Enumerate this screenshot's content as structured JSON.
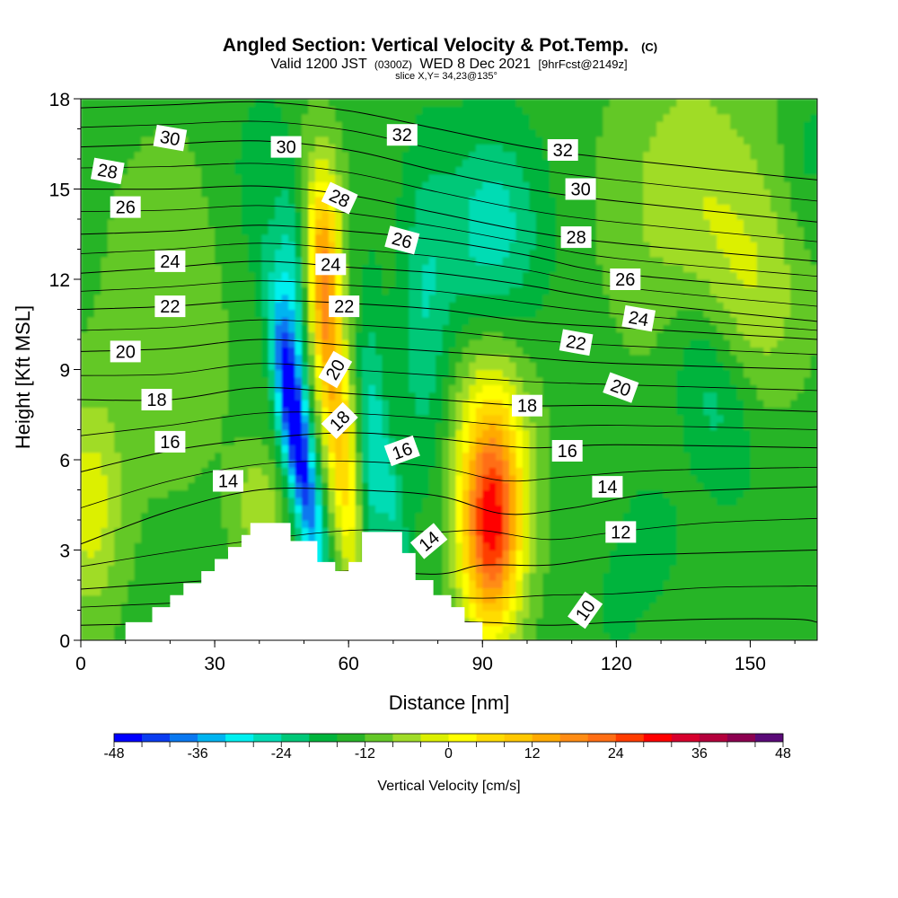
{
  "chart_data": {
    "type": "contour",
    "title": {
      "main": "Angled Section: Vertical Velocity & Pot.Temp.",
      "unit_tag": "(C)",
      "valid_prefix": "Valid 1200 JST",
      "utc_tag": "(0300Z)",
      "valid_date": "WED 8 Dec 2021",
      "forecast_tag": "[9hrFcst@2149z]",
      "slice": "slice X,Y= 34,23@135°"
    },
    "xlabel": "Distance [nm]",
    "ylabel": "Height [Kft MSL]",
    "xlim": [
      0,
      165
    ],
    "ylim": [
      0,
      18
    ],
    "x_ticks": [
      {
        "value": 0,
        "label": "0"
      },
      {
        "value": 30,
        "label": "30"
      },
      {
        "value": 60,
        "label": "60"
      },
      {
        "value": 90,
        "label": "90"
      },
      {
        "value": 120,
        "label": "120"
      },
      {
        "value": 150,
        "label": "150"
      }
    ],
    "y_ticks": [
      {
        "value": 0,
        "label": "0"
      },
      {
        "value": 3,
        "label": "3"
      },
      {
        "value": 6,
        "label": "6"
      },
      {
        "value": 9,
        "label": "9"
      },
      {
        "value": 12,
        "label": "12"
      },
      {
        "value": 15,
        "label": "15"
      },
      {
        "value": 18,
        "label": "18"
      }
    ],
    "colorbar": {
      "title": "Vertical Velocity [cm/s]",
      "min": -48,
      "max": 48,
      "step": 6,
      "colors": [
        "#0000ff",
        "#0a3cf0",
        "#0a78f0",
        "#00b4f0",
        "#00f0f0",
        "#00dcb4",
        "#00c878",
        "#00b43c",
        "#28b428",
        "#64c828",
        "#a0dc28",
        "#dcf000",
        "#ffff00",
        "#ffdc00",
        "#ffc800",
        "#ffaa00",
        "#ff8c14",
        "#ff6e14",
        "#ff3c00",
        "#ff0000",
        "#d7002d",
        "#b4003c",
        "#8c0050",
        "#5a0a78"
      ],
      "tick_labels": [
        {
          "value": -48,
          "label": "-48"
        },
        {
          "value": -36,
          "label": "-36"
        },
        {
          "value": -24,
          "label": "-24"
        },
        {
          "value": -12,
          "label": "-12"
        },
        {
          "value": 0,
          "label": "0"
        },
        {
          "value": 12,
          "label": "12"
        },
        {
          "value": 24,
          "label": "24"
        },
        {
          "value": 36,
          "label": "36"
        },
        {
          "value": 48,
          "label": "48"
        }
      ]
    },
    "terrain_profile": [
      [
        10,
        0
      ],
      [
        10,
        0.6
      ],
      [
        16,
        0.6
      ],
      [
        16,
        1.1
      ],
      [
        20,
        1.1
      ],
      [
        20,
        1.5
      ],
      [
        23,
        1.5
      ],
      [
        23,
        1.9
      ],
      [
        27,
        1.9
      ],
      [
        27,
        2.3
      ],
      [
        30,
        2.3
      ],
      [
        30,
        2.7
      ],
      [
        33,
        2.7
      ],
      [
        33,
        3.1
      ],
      [
        36,
        3.1
      ],
      [
        36,
        3.5
      ],
      [
        38,
        3.5
      ],
      [
        38,
        3.9
      ],
      [
        47,
        3.9
      ],
      [
        47,
        3.3
      ],
      [
        53,
        3.3
      ],
      [
        53,
        2.6
      ],
      [
        57,
        2.6
      ],
      [
        57,
        2.3
      ],
      [
        60,
        2.3
      ],
      [
        60,
        2.6
      ],
      [
        63,
        2.6
      ],
      [
        63,
        3.6
      ],
      [
        72,
        3.6
      ],
      [
        72,
        2.9
      ],
      [
        75,
        2.9
      ],
      [
        75,
        2.0
      ],
      [
        79,
        2.0
      ],
      [
        79,
        1.5
      ],
      [
        83,
        1.5
      ],
      [
        83,
        1.1
      ],
      [
        86,
        1.1
      ],
      [
        86,
        0.6
      ],
      [
        90,
        0.6
      ],
      [
        90,
        0
      ]
    ],
    "velocity_features": [
      {
        "x": 2,
        "z": 4.5,
        "sx": 5,
        "sz": 2.5,
        "value": 18
      },
      {
        "x": 49,
        "z": 6.3,
        "sx": 2.2,
        "sz": 3.2,
        "value": -46,
        "shear": -0.35
      },
      {
        "x": 47,
        "z": 10.2,
        "sx": 2.6,
        "sz": 3.2,
        "value": -22
      },
      {
        "x": 57,
        "z": 8.0,
        "sx": 2.6,
        "sz": 4.5,
        "value": 38,
        "shear": -0.25
      },
      {
        "x": 55,
        "z": 13.0,
        "sx": 2.5,
        "sz": 2.3,
        "value": 28
      },
      {
        "x": 65,
        "z": 5.5,
        "sx": 2.3,
        "sz": 4.0,
        "value": -18
      },
      {
        "x": 70,
        "z": 4.5,
        "sx": 2.0,
        "sz": 2.2,
        "value": -14,
        "shear": -0.3
      },
      {
        "x": 77,
        "z": 10.5,
        "sx": 4.0,
        "sz": 4.0,
        "value": -14
      },
      {
        "x": 92,
        "z": 13.5,
        "sx": 8.0,
        "sz": 2.5,
        "value": -20
      },
      {
        "x": 92,
        "z": 3.5,
        "sx": 4.5,
        "sz": 2.4,
        "value": 48
      },
      {
        "x": 92,
        "z": 6.0,
        "sx": 6.0,
        "sz": 3.0,
        "value": 26
      },
      {
        "x": 141,
        "z": 8.5,
        "sx": 6.0,
        "sz": 2.5,
        "value": -14,
        "shear": -0.35
      },
      {
        "x": 137,
        "z": 14.5,
        "sx": 12,
        "sz": 3.5,
        "value": 14
      },
      {
        "x": 152,
        "z": 11.5,
        "sx": 8,
        "sz": 2.5,
        "value": 10
      },
      {
        "x": 20,
        "z": 11.0,
        "sx": 10,
        "sz": 4,
        "value": 8
      },
      {
        "x": 120,
        "z": 1.0,
        "sx": 6,
        "sz": 2.0,
        "value": -4
      },
      {
        "x": 128,
        "z": 3.5,
        "sx": 5,
        "sz": 1.5,
        "value": -6
      },
      {
        "x": 40,
        "z": 15.0,
        "sx": 7,
        "sz": 3.0,
        "value": -6
      },
      {
        "x": 163,
        "z": 16.0,
        "sx": 4,
        "sz": 2.0,
        "value": -6
      },
      {
        "x": 40,
        "z": 4.5,
        "sx": 4,
        "sz": 1.2,
        "value": 14
      }
    ],
    "theta_contours": [
      {
        "label": "10",
        "points": [
          [
            0,
            0.5
          ],
          [
            30,
            0.6
          ],
          [
            60,
            0.7
          ],
          [
            90,
            0.6
          ],
          [
            105,
            0.5
          ],
          [
            120,
            0.6
          ],
          [
            140,
            0.7
          ],
          [
            160,
            0.7
          ],
          [
            165,
            0.6
          ]
        ],
        "label_at": [
          113,
          1.0
        ],
        "label_rot": -40
      },
      {
        "label": "12",
        "points": [
          [
            0,
            1.7
          ],
          [
            30,
            2.0
          ],
          [
            60,
            2.3
          ],
          [
            80,
            2.2
          ],
          [
            90,
            2.5
          ],
          [
            105,
            2.5
          ],
          [
            120,
            2.8
          ],
          [
            140,
            2.9
          ],
          [
            165,
            3.0
          ]
        ],
        "label_at": [
          120,
          3.6
        ],
        "label_rot": 0
      },
      {
        "label": "14",
        "points": [
          [
            0,
            3.2
          ],
          [
            20,
            4.3
          ],
          [
            40,
            5.0
          ],
          [
            60,
            5.0
          ],
          [
            80,
            4.8
          ],
          [
            95,
            4.2
          ],
          [
            110,
            4.4
          ],
          [
            130,
            4.9
          ],
          [
            165,
            5.1
          ]
        ],
        "label_at": [
          113,
          5.0
        ],
        "label_rot": 0
      },
      {
        "label": "16",
        "points": [
          [
            0,
            5.6
          ],
          [
            20,
            6.3
          ],
          [
            40,
            6.7
          ],
          [
            60,
            6.9
          ],
          [
            80,
            6.7
          ],
          [
            100,
            6.4
          ],
          [
            120,
            6.5
          ],
          [
            165,
            6.4
          ]
        ],
        "label_at": [
          110,
          6.3
        ],
        "label_rot": 0
      },
      {
        "label": "18",
        "points": [
          [
            0,
            8.0
          ],
          [
            20,
            8.0
          ],
          [
            40,
            8.4
          ],
          [
            60,
            8.2
          ],
          [
            80,
            8.0
          ],
          [
            100,
            7.8
          ],
          [
            120,
            7.8
          ],
          [
            165,
            7.6
          ]
        ],
        "label_at": [
          100,
          7.7
        ],
        "label_rot": 0
      },
      {
        "label": "20",
        "points": [
          [
            0,
            9.6
          ],
          [
            20,
            9.7
          ],
          [
            40,
            10.0
          ],
          [
            60,
            9.8
          ],
          [
            80,
            9.6
          ],
          [
            100,
            9.4
          ],
          [
            120,
            9.2
          ],
          [
            165,
            9.0
          ]
        ],
        "label_at": [
          121,
          8.4
        ],
        "label_rot": 20
      },
      {
        "label": "22",
        "points": [
          [
            0,
            11.0
          ],
          [
            20,
            11.1
          ],
          [
            40,
            11.3
          ],
          [
            60,
            11.2
          ],
          [
            80,
            11.0
          ],
          [
            100,
            10.6
          ],
          [
            120,
            10.4
          ],
          [
            165,
            10.0
          ]
        ],
        "label_at": [
          112,
          9.9
        ],
        "label_rot": 10
      },
      {
        "label": "24",
        "points": [
          [
            0,
            12.2
          ],
          [
            20,
            12.4
          ],
          [
            40,
            12.6
          ],
          [
            60,
            12.4
          ],
          [
            80,
            12.2
          ],
          [
            100,
            11.8
          ],
          [
            120,
            11.3
          ],
          [
            165,
            10.6
          ]
        ],
        "label_at": [
          124,
          10.7
        ],
        "label_rot": 10
      },
      {
        "label": "26",
        "points": [
          [
            0,
            13.5
          ],
          [
            20,
            13.6
          ],
          [
            40,
            13.8
          ],
          [
            60,
            13.6
          ],
          [
            80,
            13.3
          ],
          [
            100,
            12.8
          ],
          [
            120,
            12.2
          ],
          [
            165,
            11.6
          ]
        ],
        "label_at": [
          121,
          12.0
        ],
        "label_rot": 0
      },
      {
        "label": "28",
        "points": [
          [
            0,
            15.0
          ],
          [
            20,
            15.0
          ],
          [
            40,
            15.1
          ],
          [
            60,
            14.8
          ],
          [
            80,
            14.2
          ],
          [
            100,
            13.6
          ],
          [
            120,
            13.2
          ],
          [
            165,
            12.6
          ]
        ],
        "label_at": [
          112,
          13.4
        ],
        "label_rot": 0
      },
      {
        "label": "30",
        "points": [
          [
            0,
            16.4
          ],
          [
            20,
            16.5
          ],
          [
            40,
            16.6
          ],
          [
            60,
            16.3
          ],
          [
            80,
            15.6
          ],
          [
            100,
            15.0
          ],
          [
            120,
            14.6
          ],
          [
            165,
            13.9
          ]
        ],
        "label_at": [
          111,
          14.8
        ],
        "label_rot": 0
      },
      {
        "label": "32",
        "points": [
          [
            0,
            17.7
          ],
          [
            20,
            17.8
          ],
          [
            40,
            17.9
          ],
          [
            60,
            17.6
          ],
          [
            80,
            17.0
          ],
          [
            100,
            16.4
          ],
          [
            120,
            16.0
          ],
          [
            165,
            15.3
          ]
        ],
        "label_at": [
          107,
          16.2
        ],
        "label_rot": 0
      }
    ],
    "contour_label_positions": [
      {
        "label": "30",
        "x": 20,
        "z": 16.7,
        "rot": 10
      },
      {
        "label": "28",
        "x": 6,
        "z": 15.6,
        "rot": 10
      },
      {
        "label": "26",
        "x": 10,
        "z": 14.4,
        "rot": 0
      },
      {
        "label": "24",
        "x": 20,
        "z": 12.6,
        "rot": 0
      },
      {
        "label": "22",
        "x": 20,
        "z": 11.1,
        "rot": 0
      },
      {
        "label": "20",
        "x": 10,
        "z": 9.6,
        "rot": 0
      },
      {
        "label": "18",
        "x": 17,
        "z": 8.0,
        "rot": 0
      },
      {
        "label": "16",
        "x": 20,
        "z": 6.6,
        "rot": 0
      },
      {
        "label": "14",
        "x": 33,
        "z": 5.3,
        "rot": 0
      },
      {
        "label": "30",
        "x": 46,
        "z": 16.4,
        "rot": 0
      },
      {
        "label": "28",
        "x": 58,
        "z": 14.7,
        "rot": 25
      },
      {
        "label": "24",
        "x": 56,
        "z": 12.5,
        "rot": 0
      },
      {
        "label": "22",
        "x": 59,
        "z": 11.1,
        "rot": 0
      },
      {
        "label": "20",
        "x": 57,
        "z": 9.0,
        "rot": -60
      },
      {
        "label": "18",
        "x": 58,
        "z": 7.3,
        "rot": -45
      },
      {
        "label": "16",
        "x": 72,
        "z": 6.3,
        "rot": -20
      },
      {
        "label": "14",
        "x": 78,
        "z": 3.3,
        "rot": -40
      },
      {
        "label": "26",
        "x": 72,
        "z": 13.3,
        "rot": 15
      },
      {
        "label": "32",
        "x": 72,
        "z": 16.8,
        "rot": 0
      },
      {
        "label": "32",
        "x": 108,
        "z": 16.3,
        "rot": 0
      },
      {
        "label": "30",
        "x": 112,
        "z": 15.0,
        "rot": 0
      },
      {
        "label": "28",
        "x": 111,
        "z": 13.4,
        "rot": 0
      },
      {
        "label": "26",
        "x": 122,
        "z": 12.0,
        "rot": 0
      },
      {
        "label": "24",
        "x": 125,
        "z": 10.7,
        "rot": 10
      },
      {
        "label": "22",
        "x": 111,
        "z": 9.9,
        "rot": 10
      },
      {
        "label": "20",
        "x": 121,
        "z": 8.4,
        "rot": 20
      },
      {
        "label": "18",
        "x": 100,
        "z": 7.8,
        "rot": 0
      },
      {
        "label": "16",
        "x": 109,
        "z": 6.3,
        "rot": 0
      },
      {
        "label": "14",
        "x": 118,
        "z": 5.1,
        "rot": 0
      },
      {
        "label": "12",
        "x": 121,
        "z": 3.6,
        "rot": 0
      },
      {
        "label": "10",
        "x": 113,
        "z": 1.0,
        "rot": -55
      }
    ]
  }
}
